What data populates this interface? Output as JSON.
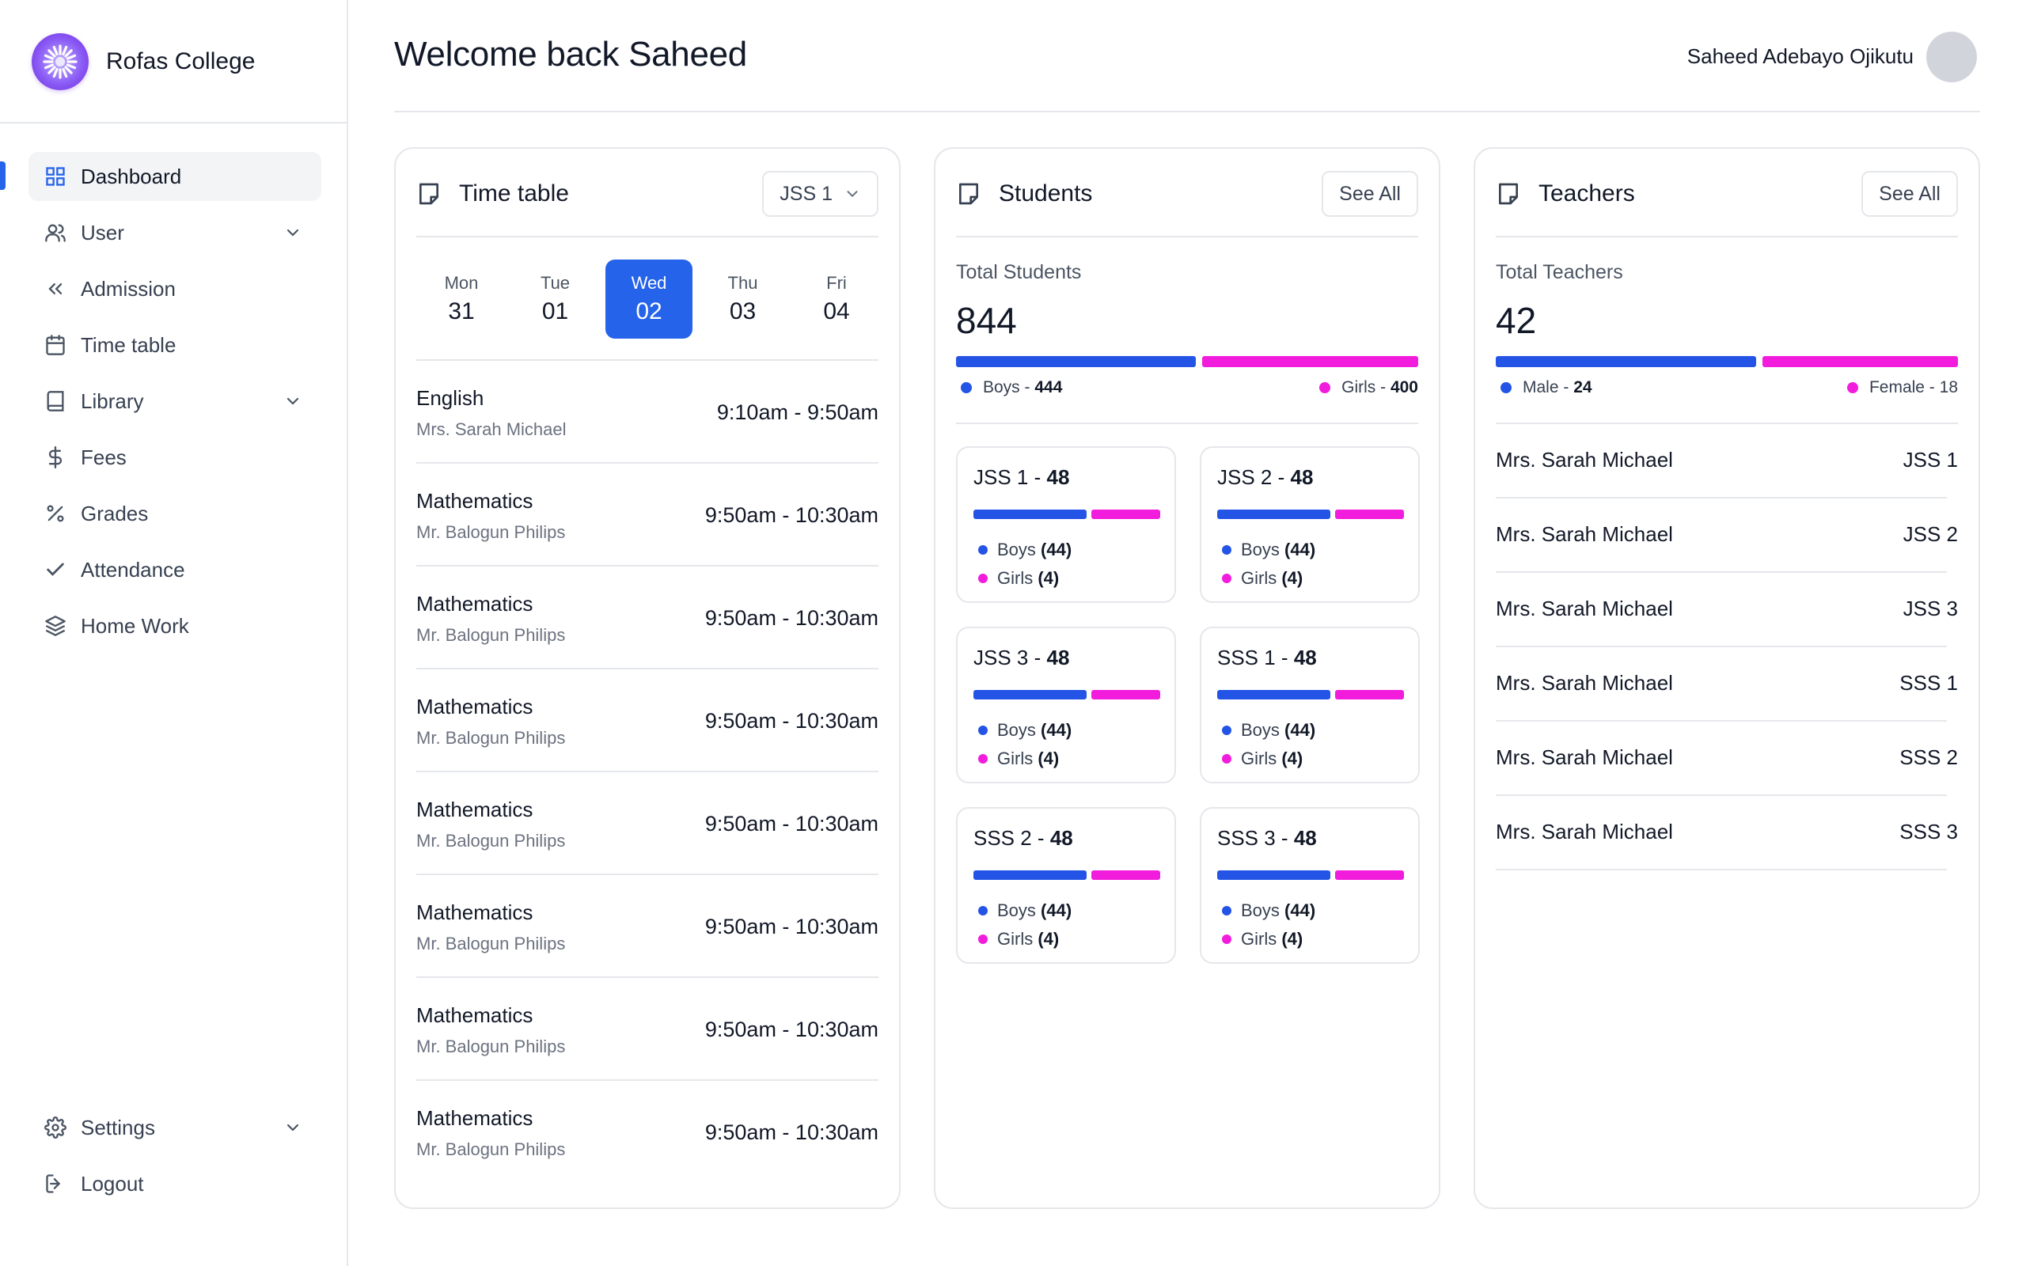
{
  "brand": {
    "name": "Rofas College"
  },
  "sidebar": {
    "items": [
      {
        "label": "Dashboard",
        "icon": "grid-icon",
        "active": true
      },
      {
        "label": "User",
        "icon": "users-icon",
        "has_submenu": true
      },
      {
        "label": "Admission",
        "icon": "chevrons-left-icon"
      },
      {
        "label": "Time table",
        "icon": "calendar-icon"
      },
      {
        "label": "Library",
        "icon": "book-icon",
        "has_submenu": true
      },
      {
        "label": "Fees",
        "icon": "dollar-icon"
      },
      {
        "label": "Grades",
        "icon": "percent-icon"
      },
      {
        "label": "Attendance",
        "icon": "check-icon"
      },
      {
        "label": "Home Work",
        "icon": "layers-icon"
      }
    ],
    "bottom_items": [
      {
        "label": "Settings",
        "icon": "gear-icon",
        "has_submenu": true
      },
      {
        "label": "Logout",
        "icon": "logout-icon"
      }
    ]
  },
  "header": {
    "title": "Welcome back Saheed",
    "user_name": "Saheed Adebayo Ojikutu"
  },
  "timetable": {
    "title": "Time table",
    "class_select": "JSS 1",
    "days": [
      {
        "name": "Mon",
        "num": "31",
        "active": false
      },
      {
        "name": "Tue",
        "num": "01",
        "active": false
      },
      {
        "name": "Wed",
        "num": "02",
        "active": true
      },
      {
        "name": "Thu",
        "num": "03",
        "active": false
      },
      {
        "name": "Fri",
        "num": "04",
        "active": false
      }
    ],
    "periods": [
      {
        "subject": "English",
        "teacher": "Mrs. Sarah Michael",
        "time": "9:10am - 9:50am"
      },
      {
        "subject": "Mathematics",
        "teacher": "Mr. Balogun Philips",
        "time": "9:50am - 10:30am"
      },
      {
        "subject": "Mathematics",
        "teacher": "Mr. Balogun Philips",
        "time": "9:50am - 10:30am"
      },
      {
        "subject": "Mathematics",
        "teacher": "Mr. Balogun Philips",
        "time": "9:50am - 10:30am"
      },
      {
        "subject": "Mathematics",
        "teacher": "Mr. Balogun Philips",
        "time": "9:50am - 10:30am"
      },
      {
        "subject": "Mathematics",
        "teacher": "Mr. Balogun Philips",
        "time": "9:50am - 10:30am"
      },
      {
        "subject": "Mathematics",
        "teacher": "Mr. Balogun Philips",
        "time": "9:50am - 10:30am"
      },
      {
        "subject": "Mathematics",
        "teacher": "Mr. Balogun Philips",
        "time": "9:50am - 10:30am"
      }
    ]
  },
  "students": {
    "title": "Students",
    "see_all": "See All",
    "total_label": "Total Students",
    "total": "844",
    "boys_label": "Boys - ",
    "boys": 444,
    "girls_label": "Girls - ",
    "girls": 400,
    "classes": [
      {
        "name": "JSS 1 - ",
        "count": "48",
        "boys_label": "Boys ",
        "boys": "(44)",
        "girls_label": "Girls ",
        "girls": "(4)",
        "boys_n": 44,
        "girls_n": 4
      },
      {
        "name": "JSS 2 - ",
        "count": "48",
        "boys_label": "Boys ",
        "boys": "(44)",
        "girls_label": "Girls ",
        "girls": "(4)",
        "boys_n": 44,
        "girls_n": 4
      },
      {
        "name": "JSS 3 - ",
        "count": "48",
        "boys_label": "Boys ",
        "boys": "(44)",
        "girls_label": "Girls ",
        "girls": "(4)",
        "boys_n": 44,
        "girls_n": 4
      },
      {
        "name": "SSS 1 - ",
        "count": "48",
        "boys_label": "Boys ",
        "boys": "(44)",
        "girls_label": "Girls ",
        "girls": "(4)",
        "boys_n": 44,
        "girls_n": 4
      },
      {
        "name": "SSS 2 - ",
        "count": "48",
        "boys_label": "Boys ",
        "boys": "(44)",
        "girls_label": "Girls ",
        "girls": "(4)",
        "boys_n": 44,
        "girls_n": 4
      },
      {
        "name": "SSS 3 - ",
        "count": "48",
        "boys_label": "Boys ",
        "boys": "(44)",
        "girls_label": "Girls ",
        "girls": "(4)",
        "boys_n": 44,
        "girls_n": 4
      }
    ]
  },
  "teachers": {
    "title": "Teachers",
    "see_all": "See All",
    "total_label": "Total Teachers",
    "total": "42",
    "male_label": "Male - ",
    "male": 24,
    "female_label": "Female - 18",
    "female": 18,
    "list": [
      {
        "name": "Mrs. Sarah Michael",
        "class": "JSS 1"
      },
      {
        "name": "Mrs. Sarah Michael",
        "class": "JSS 2"
      },
      {
        "name": "Mrs. Sarah Michael",
        "class": "JSS 3"
      },
      {
        "name": "Mrs. Sarah Michael",
        "class": "SSS 1"
      },
      {
        "name": "Mrs. Sarah Michael",
        "class": "SSS 2"
      },
      {
        "name": "Mrs. Sarah Michael",
        "class": "SSS 3"
      }
    ]
  },
  "colors": {
    "accent": "#2563eb",
    "boys": "#2454e6",
    "girls": "#f21cdc",
    "border": "#e5e7eb"
  }
}
